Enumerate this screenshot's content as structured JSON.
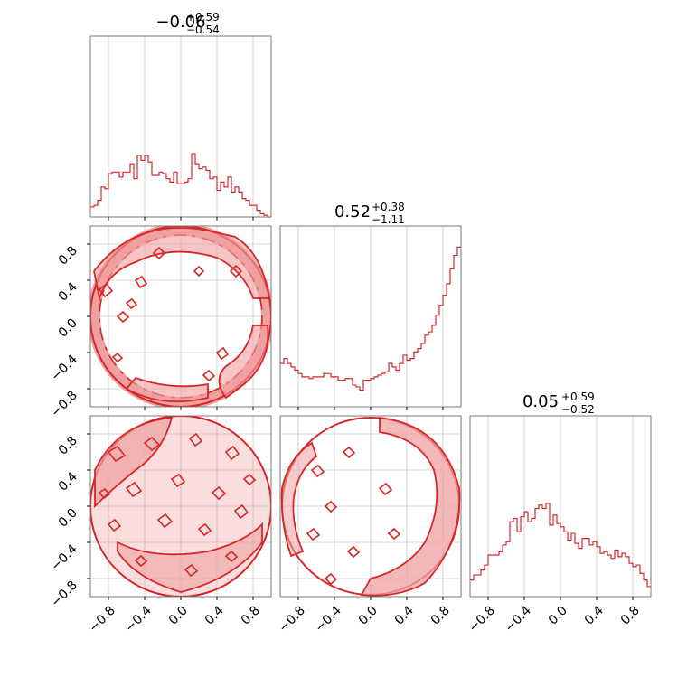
{
  "chart_data": {
    "type": "corner",
    "color": "#d62728",
    "fill_color": "#f0a0a0",
    "grid": true,
    "parameters": [
      {
        "title_value": "−0.06",
        "title_plus": "+0.59",
        "title_minus": "−0.54"
      },
      {
        "title_value": "0.52",
        "title_plus": "+0.38",
        "title_minus": "−1.11"
      },
      {
        "title_value": "0.05",
        "title_plus": "+0.59",
        "title_minus": "−0.52"
      }
    ],
    "axis_range": [
      -1.0,
      1.0
    ],
    "tick_values": [
      -0.8,
      -0.4,
      0.0,
      0.4,
      0.8
    ],
    "tick_labels": [
      "−0.8",
      "−0.4",
      "0.0",
      "0.4",
      "0.8"
    ],
    "histograms": [
      {
        "parameter": 0,
        "bin_range": [
          -1.0,
          1.0
        ],
        "counts": [
          0.06,
          0.07,
          0.1,
          0.18,
          0.17,
          0.26,
          0.27,
          0.27,
          0.24,
          0.27,
          0.27,
          0.32,
          0.23,
          0.37,
          0.34,
          0.37,
          0.33,
          0.25,
          0.25,
          0.27,
          0.26,
          0.23,
          0.21,
          0.27,
          0.2,
          0.2,
          0.21,
          0.23,
          0.38,
          0.32,
          0.29,
          0.3,
          0.28,
          0.23,
          0.24,
          0.16,
          0.21,
          0.18,
          0.24,
          0.15,
          0.18,
          0.15,
          0.11,
          0.1,
          0.07,
          0.07,
          0.04,
          0.02,
          0.01,
          0.0
        ]
      },
      {
        "parameter": 1,
        "bin_range": [
          -1.0,
          1.0
        ],
        "counts": [
          0.26,
          0.29,
          0.26,
          0.24,
          0.22,
          0.2,
          0.18,
          0.18,
          0.17,
          0.18,
          0.18,
          0.18,
          0.2,
          0.2,
          0.18,
          0.18,
          0.16,
          0.16,
          0.17,
          0.17,
          0.13,
          0.12,
          0.1,
          0.16,
          0.16,
          0.17,
          0.18,
          0.19,
          0.2,
          0.21,
          0.26,
          0.24,
          0.22,
          0.26,
          0.31,
          0.28,
          0.29,
          0.33,
          0.35,
          0.38,
          0.43,
          0.45,
          0.49,
          0.55,
          0.61,
          0.67,
          0.74,
          0.83,
          0.91,
          0.96
        ]
      },
      {
        "parameter": 2,
        "bin_range": [
          -1.0,
          1.0
        ],
        "counts": [
          0.1,
          0.13,
          0.13,
          0.16,
          0.19,
          0.25,
          0.25,
          0.25,
          0.27,
          0.31,
          0.33,
          0.45,
          0.47,
          0.39,
          0.48,
          0.51,
          0.45,
          0.47,
          0.53,
          0.55,
          0.53,
          0.56,
          0.43,
          0.49,
          0.44,
          0.42,
          0.39,
          0.34,
          0.38,
          0.32,
          0.29,
          0.35,
          0.35,
          0.31,
          0.33,
          0.3,
          0.26,
          0.27,
          0.25,
          0.23,
          0.28,
          0.24,
          0.26,
          0.24,
          0.2,
          0.18,
          0.19,
          0.14,
          0.1,
          0.06
        ]
      }
    ],
    "contours": [
      {
        "x_parameter": 0,
        "y_parameter": 1,
        "support": "unit disk",
        "density_concentration": "near the boundary of the unit disk, strongest in the upper-left and right edge"
      },
      {
        "x_parameter": 0,
        "y_parameter": 2,
        "support": "unit disk",
        "density_concentration": "spread across the disk, strongest in the upper-left"
      },
      {
        "x_parameter": 1,
        "y_parameter": 2,
        "support": "unit disk",
        "density_concentration": "concentrated toward the right (large x) half of the disk"
      }
    ]
  }
}
